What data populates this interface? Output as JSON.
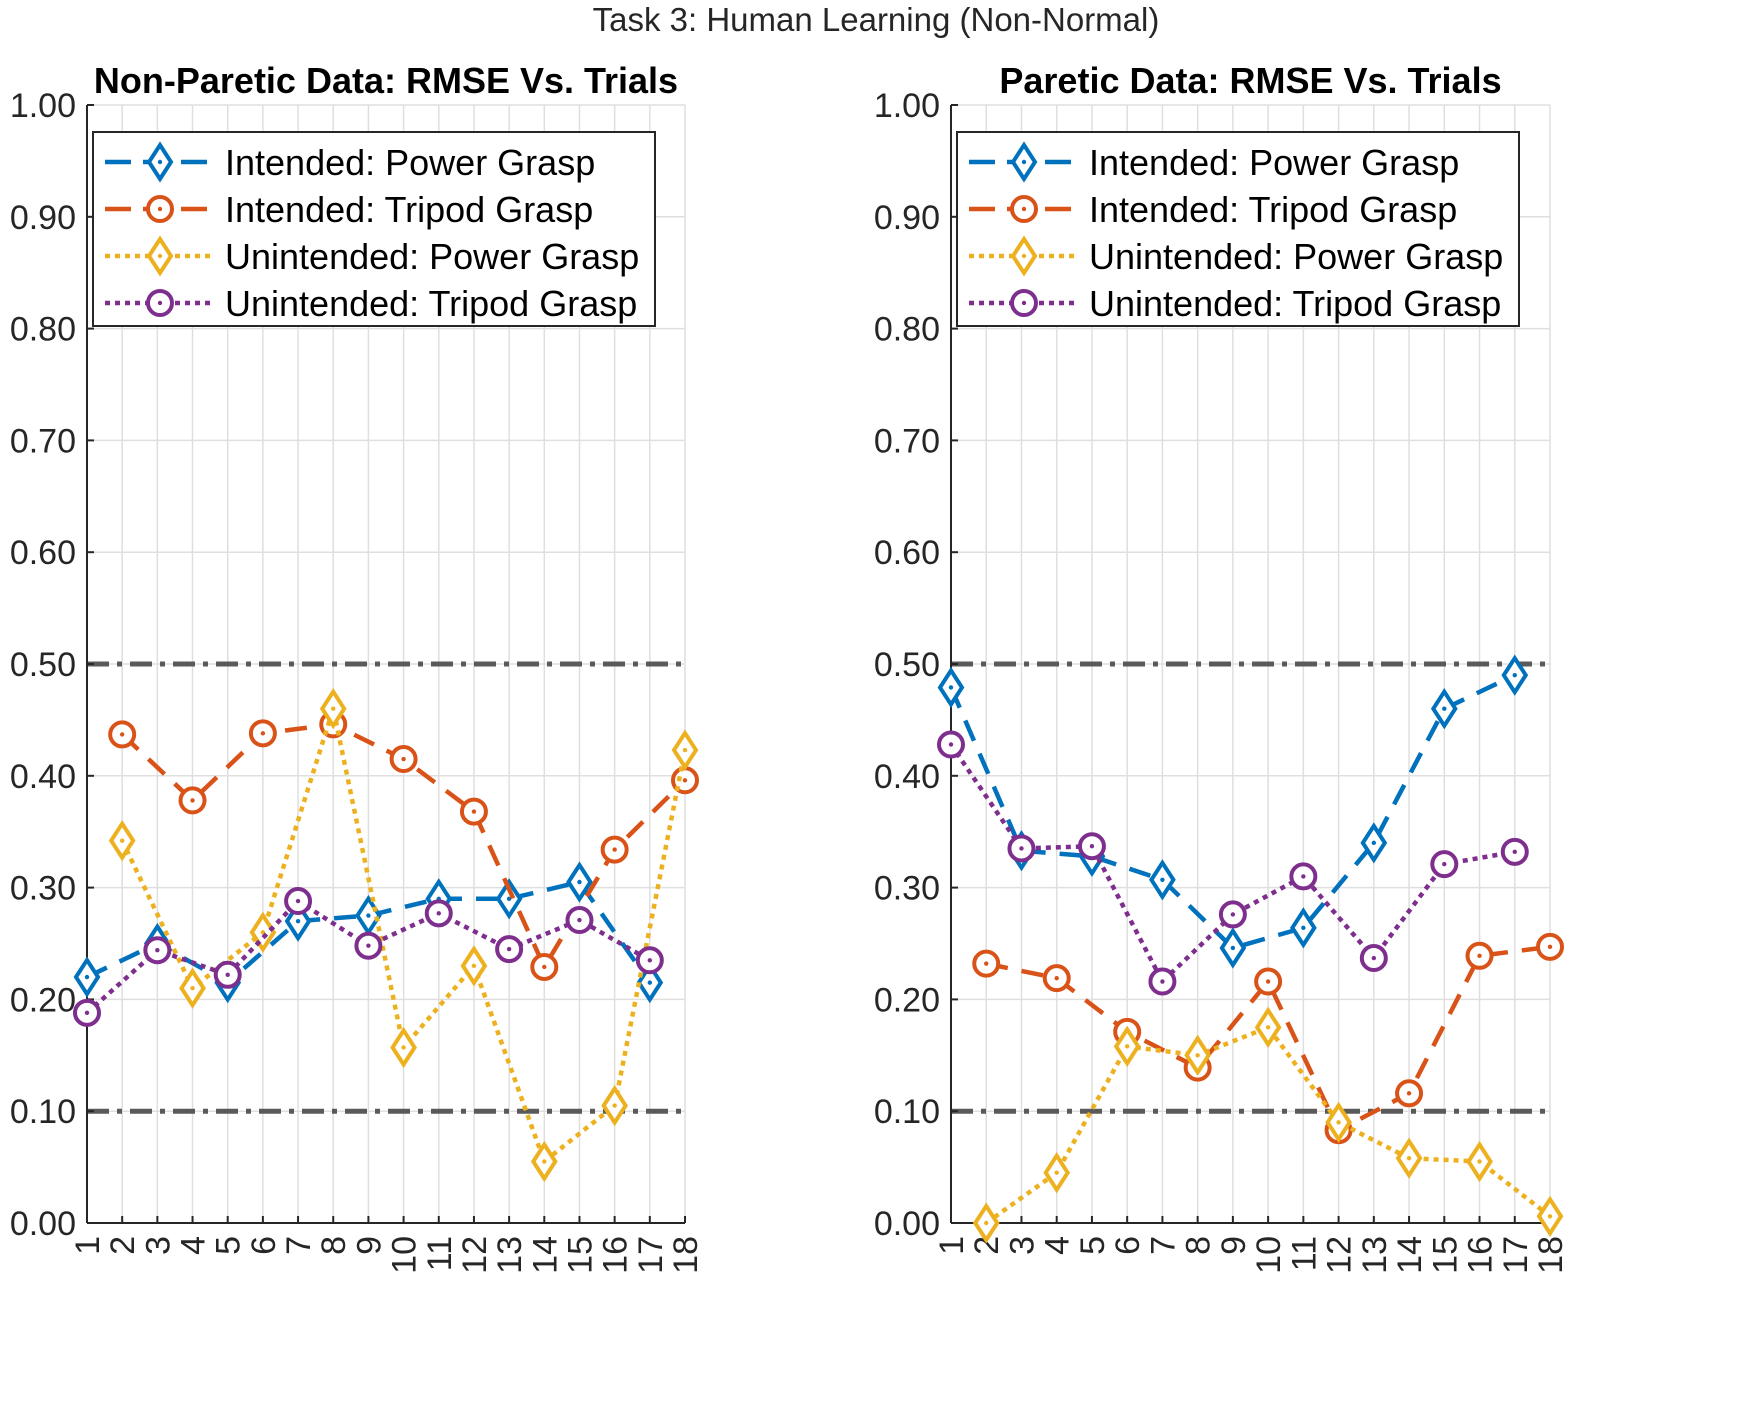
{
  "figure": {
    "title": "Task 3: Human Learning (Non-Normal)"
  },
  "chart_data": [
    {
      "type": "line",
      "title": "Non-Paretic Data: RMSE Vs. Trials",
      "xlabel": "",
      "ylabel": "",
      "x": [
        1,
        2,
        3,
        4,
        5,
        6,
        7,
        8,
        9,
        10,
        11,
        12,
        13,
        14,
        15,
        16,
        17,
        18
      ],
      "xticks": [
        "1",
        "2",
        "3",
        "4",
        "5",
        "6",
        "7",
        "8",
        "9",
        "10",
        "11",
        "12",
        "13",
        "14",
        "15",
        "16",
        "17",
        "18"
      ],
      "ylim": [
        0,
        1
      ],
      "yticks": [
        "0.00",
        "0.10",
        "0.20",
        "0.30",
        "0.40",
        "0.50",
        "0.60",
        "0.70",
        "0.80",
        "0.90",
        "1.00"
      ],
      "grid": true,
      "legend_position": "top",
      "reference_lines": [
        0.1,
        0.5
      ],
      "series": [
        {
          "name": "Intended: Power Grasp",
          "color": "#0072bd",
          "style": "dashed",
          "marker": "diamond",
          "values": [
            0.22,
            null,
            0.25,
            null,
            0.215,
            null,
            0.27,
            null,
            0.275,
            null,
            0.29,
            null,
            0.29,
            null,
            0.305,
            null,
            0.215,
            null
          ]
        },
        {
          "name": "Intended: Tripod Grasp",
          "color": "#d95319",
          "style": "dashed",
          "marker": "circle",
          "values": [
            null,
            0.437,
            null,
            0.378,
            null,
            0.438,
            null,
            0.446,
            null,
            0.415,
            null,
            0.368,
            null,
            0.229,
            null,
            0.334,
            null,
            0.396
          ]
        },
        {
          "name": "Unintended: Power Grasp",
          "color": "#edb120",
          "style": "dotted",
          "marker": "diamond",
          "values": [
            null,
            0.342,
            null,
            0.21,
            null,
            0.26,
            null,
            0.46,
            null,
            0.157,
            null,
            0.23,
            null,
            0.055,
            null,
            0.105,
            null,
            0.423
          ]
        },
        {
          "name": "Unintended: Tripod Grasp",
          "color": "#7e2f8e",
          "style": "dotted",
          "marker": "circle",
          "values": [
            0.188,
            null,
            0.244,
            null,
            0.222,
            null,
            0.288,
            null,
            0.248,
            null,
            0.277,
            null,
            0.245,
            null,
            0.271,
            null,
            0.235,
            null
          ]
        }
      ]
    },
    {
      "type": "line",
      "title": "Paretic Data: RMSE Vs. Trials",
      "xlabel": "",
      "ylabel": "",
      "x": [
        1,
        2,
        3,
        4,
        5,
        6,
        7,
        8,
        9,
        10,
        11,
        12,
        13,
        14,
        15,
        16,
        17,
        18
      ],
      "xticks": [
        "1",
        "2",
        "3",
        "4",
        "5",
        "6",
        "7",
        "8",
        "9",
        "10",
        "11",
        "12",
        "13",
        "14",
        "15",
        "16",
        "17",
        "18"
      ],
      "ylim": [
        0,
        1
      ],
      "yticks": [
        "0.00",
        "0.10",
        "0.20",
        "0.30",
        "0.40",
        "0.50",
        "0.60",
        "0.70",
        "0.80",
        "0.90",
        "1.00"
      ],
      "grid": true,
      "legend_position": "top",
      "reference_lines": [
        0.1,
        0.5
      ],
      "series": [
        {
          "name": "Intended: Power Grasp",
          "color": "#0072bd",
          "style": "dashed",
          "marker": "diamond",
          "values": [
            0.479,
            null,
            0.333,
            null,
            0.328,
            null,
            0.307,
            null,
            0.246,
            null,
            0.264,
            null,
            0.34,
            null,
            0.46,
            null,
            0.49,
            null
          ]
        },
        {
          "name": "Intended: Tripod Grasp",
          "color": "#d95319",
          "style": "dashed",
          "marker": "circle",
          "values": [
            null,
            0.232,
            null,
            0.219,
            null,
            0.171,
            null,
            0.139,
            null,
            0.216,
            null,
            0.083,
            null,
            0.116,
            null,
            0.239,
            null,
            0.247
          ]
        },
        {
          "name": "Unintended: Power Grasp",
          "color": "#edb120",
          "style": "dotted",
          "marker": "diamond",
          "values": [
            null,
            0.0,
            null,
            0.045,
            null,
            0.158,
            null,
            0.15,
            null,
            0.175,
            null,
            0.09,
            null,
            0.058,
            null,
            0.055,
            null,
            0.006
          ]
        },
        {
          "name": "Unintended: Tripod Grasp",
          "color": "#7e2f8e",
          "style": "dotted",
          "marker": "circle",
          "values": [
            0.428,
            null,
            0.335,
            null,
            0.337,
            null,
            0.216,
            null,
            0.276,
            null,
            0.31,
            null,
            0.237,
            null,
            0.321,
            null,
            0.332,
            null
          ]
        }
      ]
    }
  ]
}
